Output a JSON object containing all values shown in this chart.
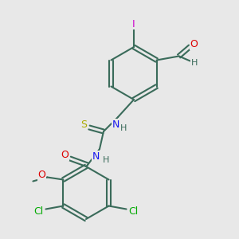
{
  "background": "#e8e8e8",
  "bond_color": "#3a6b5a",
  "bond_lw": 1.5,
  "atom_colors": {
    "I": "#cc00cc",
    "Cl": "#00aa00",
    "N": "#1a1aee",
    "O": "#dd0000",
    "S": "#aaaa00",
    "C": "#3a6b5a",
    "H": "#3a6b5a"
  },
  "font_size": 9,
  "font_size_small": 8
}
